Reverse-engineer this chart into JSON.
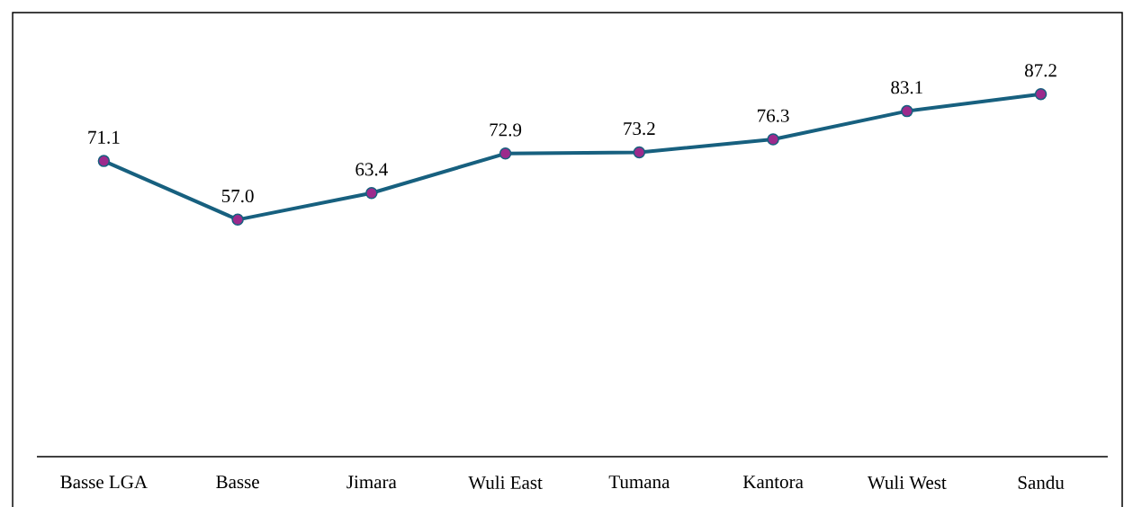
{
  "chart_data": {
    "type": "line",
    "categories": [
      "Basse LGA",
      "Basse",
      "Jimara",
      "Wuli East",
      "Tumana",
      "Kantora",
      "Wuli West",
      "Sandu"
    ],
    "values": [
      71.1,
      57.0,
      63.4,
      72.9,
      73.2,
      76.3,
      83.1,
      87.2
    ],
    "value_labels": [
      "71.1",
      "57.0",
      "63.4",
      "72.9",
      "73.2",
      "76.3",
      "83.1",
      "87.2"
    ],
    "color": "#17607f",
    "marker": "circle",
    "line_style": "solid"
  }
}
